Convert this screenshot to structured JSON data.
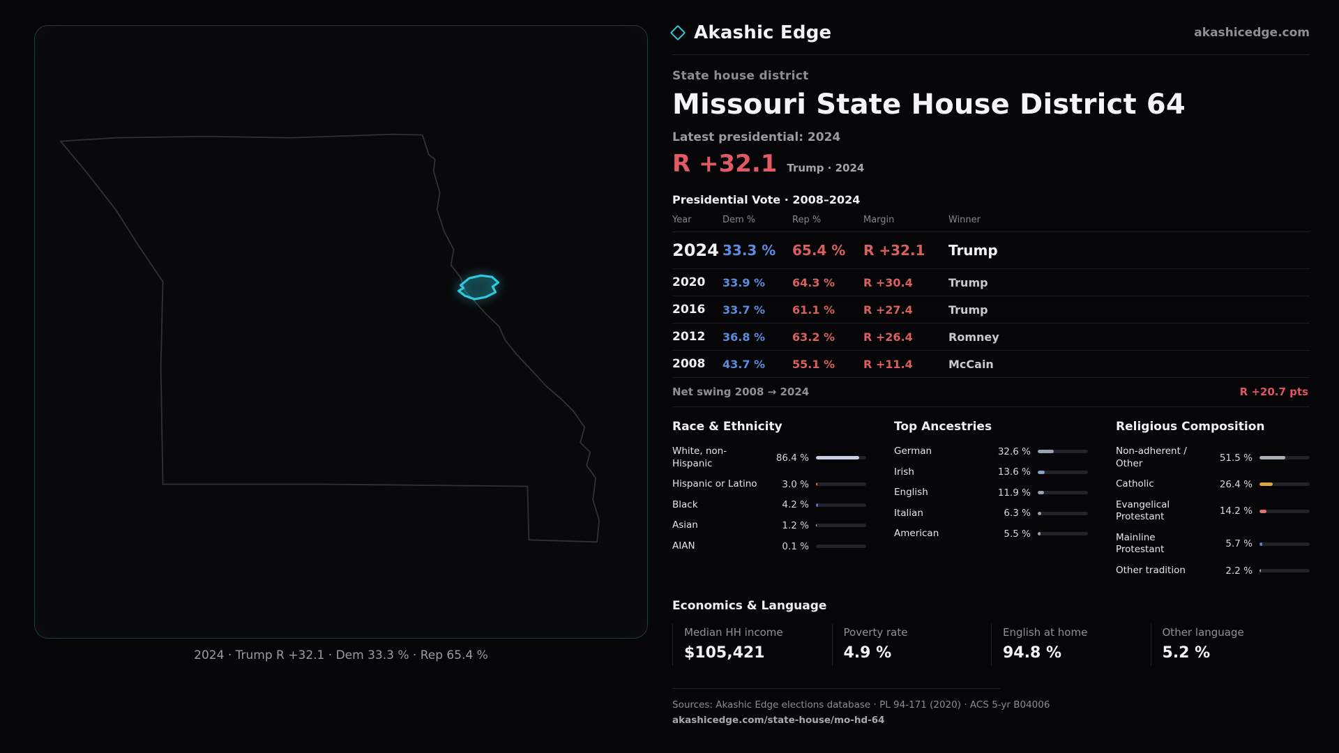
{
  "brand": {
    "name": "Akashic Edge",
    "site": "akashicedge.com",
    "accent": "#2fc9de"
  },
  "map": {
    "caption": "2024 · Trump R +32.1 · Dem 33.3 % · Rep 65.4 %"
  },
  "page": {
    "kicker": "State house district",
    "title": "Missouri State House District 64",
    "latest": "Latest presidential: 2024",
    "headline_value": "R +32.1",
    "headline_note": "Trump · 2024"
  },
  "vote_table": {
    "title": "Presidential Vote · 2008–2024",
    "columns": [
      "Year",
      "Dem %",
      "Rep %",
      "Margin",
      "Winner"
    ],
    "rows": [
      {
        "year": "2024",
        "dem": "33.3 %",
        "rep": "65.4 %",
        "margin": "R +32.1",
        "winner": "Trump",
        "featured": true
      },
      {
        "year": "2020",
        "dem": "33.9 %",
        "rep": "64.3 %",
        "margin": "R +30.4",
        "winner": "Trump"
      },
      {
        "year": "2016",
        "dem": "33.7 %",
        "rep": "61.1 %",
        "margin": "R +27.4",
        "winner": "Trump"
      },
      {
        "year": "2012",
        "dem": "36.8 %",
        "rep": "63.2 %",
        "margin": "R +26.4",
        "winner": "Romney"
      },
      {
        "year": "2008",
        "dem": "43.7 %",
        "rep": "55.1 %",
        "margin": "R +11.4",
        "winner": "McCain"
      }
    ],
    "net_swing_label": "Net swing 2008 → 2024",
    "net_swing_value": "R +20.7 pts"
  },
  "demographics": [
    {
      "title": "Race & Ethnicity",
      "rows": [
        {
          "label": "White, non-Hispanic",
          "value": "86.4 %",
          "pct": 86.4,
          "color": "#c9d0e3"
        },
        {
          "label": "Hispanic or Latino",
          "value": "3.0 %",
          "pct": 3.0,
          "color": "#e0604f"
        },
        {
          "label": "Black",
          "value": "4.2 %",
          "pct": 4.2,
          "color": "#5d6fd8"
        },
        {
          "label": "Asian",
          "value": "1.2 %",
          "pct": 1.2,
          "color": "#c9d0e3"
        },
        {
          "label": "AIAN",
          "value": "0.1 %",
          "pct": 0.1,
          "color": "#c9d0e3"
        }
      ]
    },
    {
      "title": "Top Ancestries",
      "rows": [
        {
          "label": "German",
          "value": "32.6 %",
          "pct": 32.6,
          "color": "#9aa2b0"
        },
        {
          "label": "Irish",
          "value": "13.6 %",
          "pct": 13.6,
          "color": "#8fa0c8"
        },
        {
          "label": "English",
          "value": "11.9 %",
          "pct": 11.9,
          "color": "#9aa2b0"
        },
        {
          "label": "Italian",
          "value": "6.3 %",
          "pct": 6.3,
          "color": "#9aa2b0"
        },
        {
          "label": "American",
          "value": "5.5 %",
          "pct": 5.5,
          "color": "#9aa2b0"
        }
      ]
    },
    {
      "title": "Religious Composition",
      "rows": [
        {
          "label": "Non-adherent / Other",
          "value": "51.5 %",
          "pct": 51.5,
          "color": "#aab0ba"
        },
        {
          "label": "Catholic",
          "value": "26.4 %",
          "pct": 26.4,
          "color": "#d9a53c"
        },
        {
          "label": "Evangelical Protestant",
          "value": "14.2 %",
          "pct": 14.2,
          "color": "#e2726b"
        },
        {
          "label": "Mainline Protestant",
          "value": "5.7 %",
          "pct": 5.7,
          "color": "#5d7fd8"
        },
        {
          "label": "Other tradition",
          "value": "2.2 %",
          "pct": 2.2,
          "color": "#9aa2b0"
        }
      ]
    }
  ],
  "economics": {
    "title": "Economics & Language",
    "stats": [
      {
        "label": "Median HH income",
        "value": "$105,421"
      },
      {
        "label": "Poverty rate",
        "value": "4.9 %"
      },
      {
        "label": "English at home",
        "value": "94.8 %"
      },
      {
        "label": "Other language",
        "value": "5.2 %"
      }
    ]
  },
  "footer": {
    "sources": "Sources: Akashic Edge elections database · PL 94-171 (2020) · ACS 5-yr B04006",
    "permalink": "akashicedge.com/state-house/mo-hd-64"
  }
}
